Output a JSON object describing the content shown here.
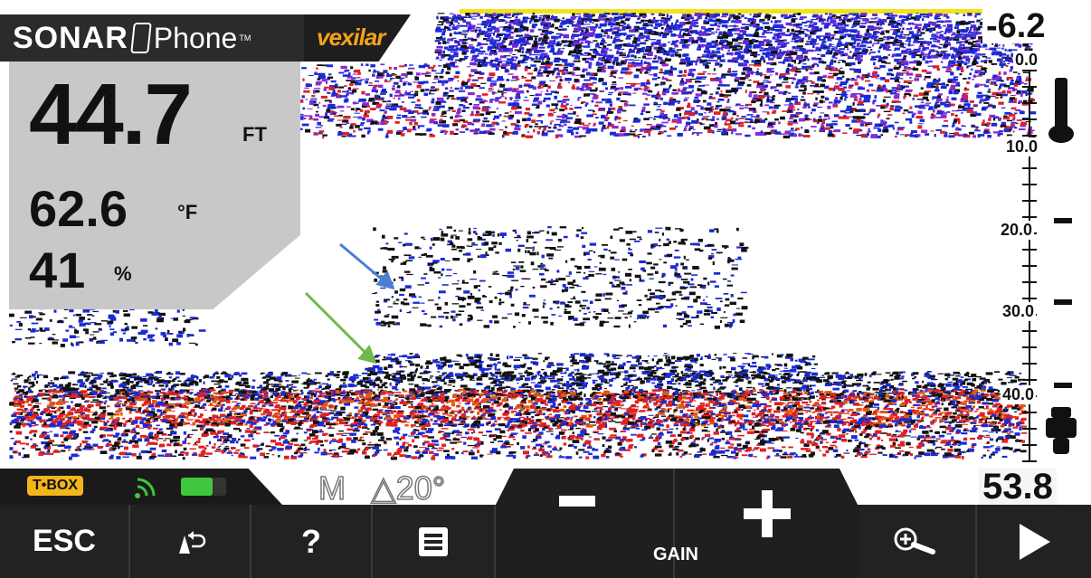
{
  "header": {
    "brand_sonar": "SONAR",
    "brand_phone": "Phone",
    "brand_tm": "TM",
    "brand_vexilar": "vexilar"
  },
  "readout": {
    "depth_value": "44.7",
    "depth_unit": "FT",
    "temp_value": "62.6",
    "temp_unit": "°F",
    "battery_value": "41",
    "battery_unit": "%"
  },
  "scale": {
    "top_depth": "-6.2",
    "labels": [
      "0.0",
      "10.0",
      "20.0",
      "30.0",
      "40.0"
    ],
    "bottom_depth": "53.8"
  },
  "status": {
    "tbox_label": "T•BOX",
    "signal_icon": "wifi-signal-icon",
    "battery_level": 0.7,
    "mode": "M",
    "cone_angle": "△20°"
  },
  "toolbar": {
    "esc_label": "ESC",
    "help_label": "?",
    "gain_label": "GAIN"
  },
  "colors": {
    "accent_orange": "#f5a21a",
    "tbox_yellow": "#f2b61a",
    "battery_green": "#3fc83f",
    "sonar_blue": "#1b2bd4",
    "sonar_red": "#e02020",
    "arrow_blue": "#4a7fd4",
    "arrow_green": "#6fb84a"
  }
}
